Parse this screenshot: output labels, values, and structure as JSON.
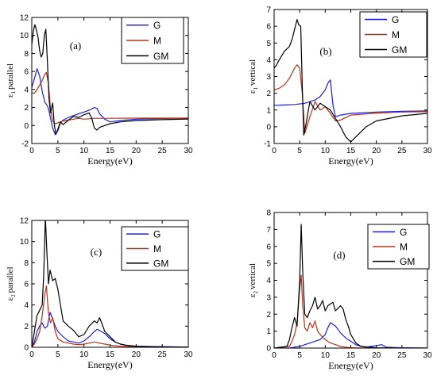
{
  "chart_data": [
    {
      "type": "line",
      "panel_label": "(a)",
      "ylabel": {
        "symbol": "ε",
        "sub": "1",
        "text": "parallel"
      },
      "xlabel": "Energy(eV)",
      "xlim": [
        0,
        30
      ],
      "ylim": [
        -2,
        12
      ],
      "xticks": [
        0,
        5,
        10,
        15,
        20,
        25,
        30
      ],
      "yticks": [
        -2,
        0,
        2,
        4,
        6,
        8,
        10,
        12
      ],
      "legend": "top-right",
      "series": [
        {
          "name": "G",
          "color": "#1f1fd6",
          "x": [
            0,
            0.5,
            1,
            1.5,
            2,
            2.5,
            3,
            3.3,
            3.6,
            4,
            4.5,
            5,
            5.5,
            6,
            7,
            8,
            9,
            10,
            11,
            12,
            12.5,
            13,
            14,
            15,
            17,
            20,
            25,
            30
          ],
          "y": [
            4.2,
            5.2,
            6.3,
            5.5,
            3.8,
            2.6,
            2.2,
            1.6,
            0.8,
            -0.3,
            -1.0,
            -0.6,
            0.3,
            0.6,
            0.9,
            1.1,
            1.3,
            1.5,
            1.7,
            2.0,
            1.9,
            1.3,
            0.7,
            0.4,
            0.55,
            0.7,
            0.78,
            0.82
          ]
        },
        {
          "name": "M",
          "color": "#b5341c",
          "x": [
            0,
            0.5,
            1,
            1.5,
            2,
            2.5,
            2.8,
            3.2,
            3.6,
            4,
            4.5,
            5,
            6,
            7,
            8,
            9,
            10,
            11,
            12,
            13,
            15,
            20,
            25,
            30
          ],
          "y": [
            3.6,
            3.6,
            4.0,
            4.5,
            5.0,
            5.7,
            5.9,
            4.6,
            1.8,
            0.5,
            0.2,
            0.3,
            0.5,
            0.6,
            0.7,
            0.8,
            0.7,
            0.75,
            0.8,
            0.8,
            0.8,
            0.82,
            0.82,
            0.83
          ]
        },
        {
          "name": "GM",
          "color": "#000000",
          "x": [
            0,
            0.3,
            0.6,
            0.9,
            1.2,
            1.5,
            1.8,
            2.1,
            2.4,
            2.7,
            3.0,
            3.3,
            3.6,
            4.0,
            4.3,
            4.6,
            5.0,
            5.5,
            6,
            7,
            8,
            9,
            10,
            11,
            11.5,
            12,
            12.5,
            13,
            14,
            15,
            17,
            20,
            25,
            30
          ],
          "y": [
            9.0,
            10.5,
            11.2,
            10.6,
            9.8,
            8.3,
            7.6,
            8.0,
            10.0,
            10.7,
            7.0,
            3.0,
            1.4,
            2.5,
            0.2,
            -1.0,
            -0.4,
            0.4,
            0.1,
            0.6,
            1.0,
            0.9,
            1.2,
            1.4,
            0.8,
            -0.3,
            -0.5,
            -0.2,
            0.0,
            0.2,
            0.4,
            0.55,
            0.65,
            0.72
          ]
        }
      ]
    },
    {
      "type": "line",
      "panel_label": "(b)",
      "ylabel": {
        "symbol": "ε",
        "sub": "1",
        "text": "vertical"
      },
      "xlabel": "Energy(eV)",
      "xlim": [
        0,
        30
      ],
      "ylim": [
        -1,
        7
      ],
      "xticks": [
        0,
        5,
        10,
        15,
        20,
        25,
        30
      ],
      "yticks": [
        -1,
        0,
        1,
        2,
        3,
        4,
        5,
        6,
        7
      ],
      "legend": "top-right",
      "series": [
        {
          "name": "G",
          "color": "#1f1fd6",
          "x": [
            0,
            2,
            4,
            6,
            8,
            9,
            10,
            10.5,
            11,
            11.5,
            12,
            13,
            15,
            20,
            25,
            30
          ],
          "y": [
            1.28,
            1.3,
            1.33,
            1.4,
            1.6,
            1.8,
            2.2,
            2.6,
            2.8,
            1.3,
            0.6,
            0.7,
            0.8,
            0.88,
            0.92,
            0.95
          ]
        },
        {
          "name": "M",
          "color": "#b5341c",
          "x": [
            0,
            1,
            2,
            3,
            3.5,
            4,
            4.5,
            5,
            5.5,
            6,
            7,
            8,
            9,
            10,
            11,
            12,
            13,
            15,
            20,
            25,
            30
          ],
          "y": [
            2.2,
            2.3,
            2.5,
            2.9,
            3.2,
            3.5,
            3.7,
            3.5,
            2.0,
            -0.4,
            0.6,
            1.5,
            1.0,
            1.2,
            0.8,
            0.35,
            0.4,
            0.7,
            0.82,
            0.88,
            0.9
          ]
        },
        {
          "name": "GM",
          "color": "#000000",
          "x": [
            0,
            0.5,
            1,
            2,
            3,
            3.5,
            4,
            4.5,
            4.8,
            5.2,
            5.5,
            5.8,
            6.2,
            7,
            8,
            9,
            10,
            11,
            12,
            13,
            14,
            15,
            16,
            17,
            18,
            20,
            25,
            30
          ],
          "y": [
            3.5,
            3.7,
            4.0,
            4.5,
            4.8,
            5.2,
            5.8,
            6.4,
            6.1,
            6.0,
            2.5,
            -0.5,
            0.1,
            1.5,
            1.0,
            1.4,
            1.2,
            1.0,
            0.5,
            0.0,
            -0.6,
            -0.9,
            -0.6,
            -0.3,
            0.0,
            0.35,
            0.65,
            0.8
          ]
        }
      ]
    },
    {
      "type": "line",
      "panel_label": "(c)",
      "ylabel": {
        "symbol": "ε",
        "sub": "2",
        "text": "parallel"
      },
      "xlabel": "Energy(eV)",
      "xlim": [
        0,
        30
      ],
      "ylim": [
        0,
        12
      ],
      "xticks": [
        0,
        5,
        10,
        15,
        20,
        25,
        30
      ],
      "yticks": [
        0,
        2,
        4,
        6,
        8,
        10,
        12
      ],
      "legend": "top-right",
      "series": [
        {
          "name": "G",
          "color": "#1f1fd6",
          "x": [
            0,
            0.5,
            1,
            1.5,
            2,
            2.5,
            3,
            3.5,
            4,
            4.5,
            5,
            6,
            7,
            8,
            9,
            10,
            11,
            12,
            12.5,
            13,
            14,
            15,
            16,
            17,
            18,
            20,
            25,
            30
          ],
          "y": [
            0,
            0.5,
            1.5,
            2.0,
            2.3,
            1.8,
            2.0,
            3.3,
            2.7,
            2.0,
            1.5,
            1.0,
            0.6,
            0.5,
            0.4,
            0.6,
            1.0,
            1.5,
            1.7,
            1.6,
            1.3,
            0.8,
            0.5,
            0.3,
            0.2,
            0.1,
            0.05,
            0.02
          ]
        },
        {
          "name": "M",
          "color": "#b5341c",
          "x": [
            0,
            0.5,
            1,
            1.5,
            2,
            2.5,
            2.8,
            3.2,
            3.6,
            4,
            4.5,
            5,
            6,
            7,
            8,
            9,
            10,
            11,
            12,
            13,
            15,
            17,
            20,
            25,
            30
          ],
          "y": [
            0,
            0.3,
            0.8,
            1.5,
            3.0,
            5.0,
            5.8,
            3.2,
            2.3,
            2.8,
            1.5,
            0.8,
            0.5,
            0.4,
            0.3,
            0.25,
            0.3,
            0.4,
            0.5,
            0.4,
            0.2,
            0.1,
            0.05,
            0.02,
            0.01
          ]
        },
        {
          "name": "GM",
          "color": "#000000",
          "x": [
            0,
            0.5,
            1,
            1.5,
            2,
            2.3,
            2.6,
            2.9,
            3.2,
            3.5,
            4,
            4.5,
            5,
            5.5,
            6,
            7,
            8,
            9,
            10,
            11,
            12,
            12.5,
            13,
            14,
            15,
            16,
            17,
            18,
            20,
            25,
            30
          ],
          "y": [
            0,
            1.5,
            3.0,
            3.5,
            4.0,
            7.0,
            12.3,
            9.0,
            6.0,
            7.3,
            6.3,
            6.5,
            5.5,
            4.0,
            2.5,
            2.0,
            1.6,
            1.0,
            1.2,
            2.0,
            2.5,
            2.3,
            2.8,
            1.5,
            1.0,
            0.5,
            0.3,
            0.2,
            0.1,
            0.05,
            0.02
          ]
        }
      ]
    },
    {
      "type": "line",
      "panel_label": "(d)",
      "ylabel": {
        "symbol": "ε",
        "sub": "2",
        "text": "vertical"
      },
      "xlabel": "Energy(eV)",
      "xlim": [
        0,
        30
      ],
      "ylim": [
        0,
        8
      ],
      "xticks": [
        0,
        5,
        10,
        15,
        20,
        25,
        30
      ],
      "yticks": [
        0,
        1,
        2,
        3,
        4,
        5,
        6,
        7,
        8
      ],
      "legend": "top-right",
      "series": [
        {
          "name": "G",
          "color": "#1f1fd6",
          "x": [
            0,
            3,
            4,
            5,
            6,
            7,
            8,
            9,
            10,
            10.5,
            11,
            12,
            13,
            14,
            15,
            16,
            17,
            18,
            20,
            21,
            22,
            25,
            30
          ],
          "y": [
            0,
            0,
            0.05,
            0.1,
            0.2,
            0.3,
            0.4,
            0.5,
            0.8,
            1.2,
            1.5,
            1.3,
            0.9,
            0.6,
            0.4,
            0.2,
            0.1,
            0.05,
            0.15,
            0.2,
            0.05,
            0.02,
            0.0
          ]
        },
        {
          "name": "M",
          "color": "#b5341c",
          "x": [
            0,
            3,
            3.5,
            4,
            4.5,
            5,
            5.3,
            5.6,
            6,
            6.5,
            7,
            7.5,
            8,
            8.5,
            9,
            10,
            11,
            12,
            13,
            14,
            15,
            17,
            20,
            30
          ],
          "y": [
            0,
            0.1,
            0.4,
            0.8,
            1.5,
            3.5,
            4.3,
            2.5,
            1.2,
            1.0,
            1.5,
            1.2,
            1.6,
            1.0,
            0.8,
            0.5,
            0.3,
            0.2,
            0.1,
            0.05,
            0.02,
            0.0,
            0.0,
            0.0
          ]
        },
        {
          "name": "GM",
          "color": "#000000",
          "x": [
            0,
            2.5,
            3,
            3.5,
            4,
            4.5,
            5,
            5.3,
            5.6,
            6,
            6.5,
            7,
            7.5,
            8,
            8.5,
            9,
            9.5,
            10,
            10.5,
            11,
            11.5,
            12,
            13,
            13.5,
            14,
            14.5,
            15,
            16,
            17,
            20,
            25,
            30
          ],
          "y": [
            0,
            0.1,
            0.5,
            1.2,
            1.8,
            1.3,
            4.0,
            7.3,
            4.5,
            2.0,
            1.8,
            2.2,
            2.5,
            3.0,
            2.3,
            2.5,
            2.8,
            2.2,
            2.5,
            2.6,
            2.7,
            2.2,
            2.5,
            2.3,
            1.7,
            1.3,
            0.8,
            0.3,
            0.1,
            0.02,
            0.0,
            0.0
          ]
        }
      ]
    }
  ]
}
